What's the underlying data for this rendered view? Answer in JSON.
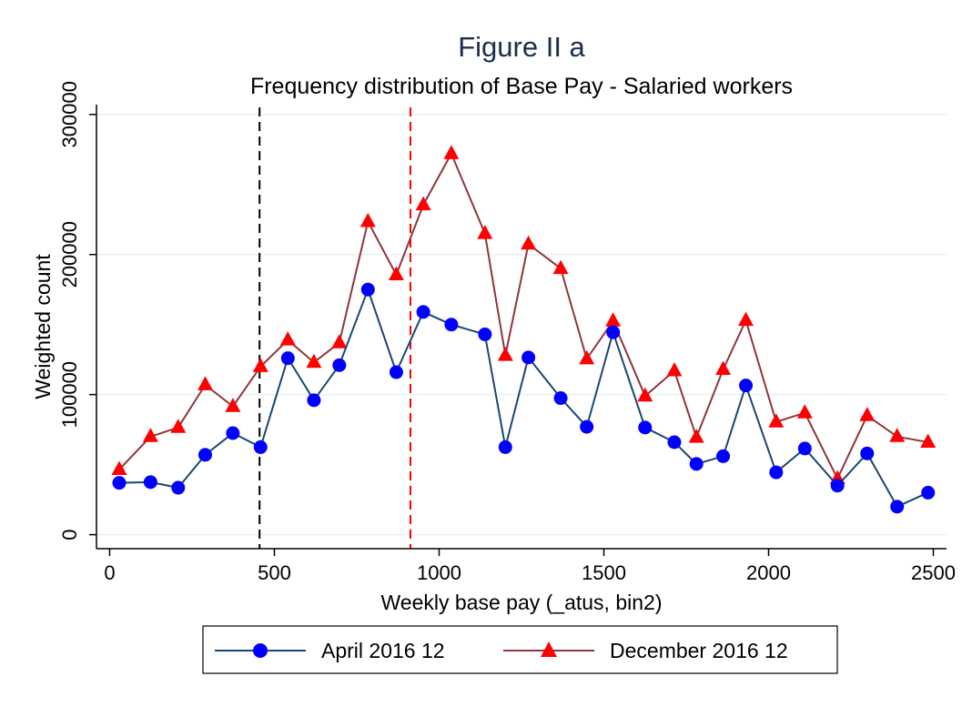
{
  "chart_data": {
    "type": "line",
    "title": "Figure II a",
    "subtitle": "Frequency distribution of Base Pay - Salaried workers",
    "xlabel": "Weekly base pay (_atus, bin2)",
    "ylabel": "Weighted count",
    "xlim": [
      -40,
      2540
    ],
    "ylim": [
      -10000,
      307000
    ],
    "xticks": [
      0,
      500,
      1000,
      1500,
      2000,
      2500
    ],
    "yticks": [
      0,
      100000,
      200000,
      300000
    ],
    "xtick_labels": [
      "0",
      "500",
      "1000",
      "1500",
      "2000",
      "2500"
    ],
    "ytick_labels": [
      "0",
      "100000",
      "200000",
      "300000"
    ],
    "grid": "horizontal",
    "legend_position": "bottom",
    "reference_lines": [
      {
        "x": 455,
        "color": "#000000",
        "style": "dashed"
      },
      {
        "x": 913,
        "color": "#ff0000",
        "style": "dashed"
      }
    ],
    "series": [
      {
        "name": "April 2016 12",
        "color": "#1a476f",
        "marker_color": "#0000ff",
        "marker": "circle",
        "x": [
          29,
          124,
          208,
          290,
          374,
          458,
          541,
          620,
          697,
          784,
          870,
          952,
          1037,
          1139,
          1201,
          1271,
          1369,
          1448,
          1528,
          1625,
          1714,
          1781,
          1862,
          1931,
          2023,
          2110,
          2209,
          2299,
          2390,
          2484
        ],
        "y": [
          37000,
          37500,
          33500,
          57000,
          72500,
          62500,
          126000,
          96000,
          121000,
          175000,
          116000,
          159000,
          150000,
          143000,
          62500,
          126500,
          97500,
          77000,
          144500,
          76500,
          66000,
          50500,
          56000,
          106500,
          44500,
          61500,
          35000,
          58000,
          20000,
          30000
        ]
      },
      {
        "name": "December 2016 12",
        "color": "#90353b",
        "marker_color": "#ff0000",
        "marker": "triangle",
        "x": [
          29,
          124,
          208,
          290,
          374,
          458,
          541,
          620,
          697,
          784,
          870,
          952,
          1037,
          1139,
          1201,
          1271,
          1369,
          1448,
          1528,
          1625,
          1714,
          1781,
          1862,
          1931,
          2023,
          2110,
          2209,
          2299,
          2390,
          2484
        ],
        "y": [
          46500,
          70000,
          76500,
          107000,
          91500,
          120000,
          139000,
          123000,
          137000,
          223500,
          185500,
          235500,
          272000,
          215000,
          128000,
          207500,
          190000,
          125500,
          152500,
          99000,
          117000,
          69500,
          118000,
          153000,
          80500,
          87000,
          40000,
          85000,
          70000,
          66000
        ]
      }
    ]
  }
}
